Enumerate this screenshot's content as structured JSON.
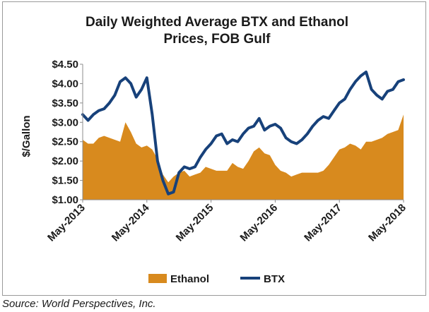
{
  "chart_data": {
    "type": "area",
    "title_lines": [
      "Daily Weighted Average BTX and Ethanol",
      "Prices, FOB Gulf"
    ],
    "ylabel": "$/Gallon",
    "xlabel": "",
    "ylim": [
      1.0,
      4.5
    ],
    "yticks": [
      1.0,
      1.5,
      2.0,
      2.5,
      3.0,
      3.5,
      4.0,
      4.5
    ],
    "ytick_labels": [
      "$1.00",
      "$1.50",
      "$2.00",
      "$2.50",
      "$3.00",
      "$3.50",
      "$4.00",
      "$4.50"
    ],
    "xlim": [
      "2013-05",
      "2018-05"
    ],
    "xtick_labels": [
      "May-2013",
      "May-2014",
      "May-2015",
      "May-2016",
      "May-2017",
      "May-2018"
    ],
    "grid": false,
    "legend_position": "bottom",
    "series": [
      {
        "name": "Ethanol",
        "kind": "area",
        "color": "#D88A1E",
        "x": [
          "2013-05",
          "2013-06",
          "2013-07",
          "2013-08",
          "2013-09",
          "2013-10",
          "2013-11",
          "2013-12",
          "2014-01",
          "2014-02",
          "2014-03",
          "2014-04",
          "2014-05",
          "2014-06",
          "2014-07",
          "2014-08",
          "2014-09",
          "2014-10",
          "2014-11",
          "2014-12",
          "2015-01",
          "2015-02",
          "2015-03",
          "2015-04",
          "2015-05",
          "2015-06",
          "2015-07",
          "2015-08",
          "2015-09",
          "2015-10",
          "2015-11",
          "2015-12",
          "2016-01",
          "2016-02",
          "2016-03",
          "2016-04",
          "2016-05",
          "2016-06",
          "2016-07",
          "2016-08",
          "2016-09",
          "2016-10",
          "2016-11",
          "2016-12",
          "2017-01",
          "2017-02",
          "2017-03",
          "2017-04",
          "2017-05",
          "2017-06",
          "2017-07",
          "2017-08",
          "2017-09",
          "2017-10",
          "2017-11",
          "2017-12",
          "2018-01",
          "2018-02",
          "2018-03",
          "2018-04",
          "2018-05"
        ],
        "values": [
          2.55,
          2.45,
          2.45,
          2.6,
          2.65,
          2.6,
          2.55,
          2.5,
          3.0,
          2.75,
          2.45,
          2.35,
          2.4,
          2.3,
          2.05,
          1.65,
          1.45,
          1.6,
          1.7,
          1.75,
          1.6,
          1.65,
          1.7,
          1.85,
          1.8,
          1.75,
          1.75,
          1.75,
          1.95,
          1.85,
          1.8,
          2.0,
          2.25,
          2.35,
          2.2,
          2.15,
          1.9,
          1.75,
          1.7,
          1.6,
          1.65,
          1.7,
          1.7,
          1.7,
          1.7,
          1.75,
          1.9,
          2.1,
          2.3,
          2.35,
          2.45,
          2.4,
          2.3,
          2.5,
          2.5,
          2.55,
          2.6,
          2.7,
          2.75,
          2.8,
          3.2
        ]
      },
      {
        "name": "BTX",
        "kind": "line",
        "color": "#17417A",
        "x": [
          "2013-05",
          "2013-06",
          "2013-07",
          "2013-08",
          "2013-09",
          "2013-10",
          "2013-11",
          "2013-12",
          "2014-01",
          "2014-02",
          "2014-03",
          "2014-04",
          "2014-05",
          "2014-06",
          "2014-07",
          "2014-08",
          "2014-09",
          "2014-10",
          "2014-11",
          "2014-12",
          "2015-01",
          "2015-02",
          "2015-03",
          "2015-04",
          "2015-05",
          "2015-06",
          "2015-07",
          "2015-08",
          "2015-09",
          "2015-10",
          "2015-11",
          "2015-12",
          "2016-01",
          "2016-02",
          "2016-03",
          "2016-04",
          "2016-05",
          "2016-06",
          "2016-07",
          "2016-08",
          "2016-09",
          "2016-10",
          "2016-11",
          "2016-12",
          "2017-01",
          "2017-02",
          "2017-03",
          "2017-04",
          "2017-05",
          "2017-06",
          "2017-07",
          "2017-08",
          "2017-09",
          "2017-10",
          "2017-11",
          "2017-12",
          "2018-01",
          "2018-02",
          "2018-03",
          "2018-04",
          "2018-05"
        ],
        "values": [
          3.2,
          3.05,
          3.2,
          3.3,
          3.35,
          3.5,
          3.7,
          4.05,
          4.15,
          4.0,
          3.65,
          3.85,
          4.15,
          3.2,
          2.0,
          1.5,
          1.15,
          1.2,
          1.7,
          1.85,
          1.8,
          1.85,
          2.1,
          2.3,
          2.45,
          2.65,
          2.7,
          2.45,
          2.55,
          2.5,
          2.7,
          2.85,
          2.9,
          3.1,
          2.8,
          2.9,
          2.95,
          2.85,
          2.6,
          2.5,
          2.45,
          2.55,
          2.7,
          2.9,
          3.05,
          3.15,
          3.1,
          3.3,
          3.5,
          3.6,
          3.85,
          4.05,
          4.2,
          4.3,
          3.85,
          3.7,
          3.6,
          3.8,
          3.85,
          4.05,
          4.1
        ]
      }
    ]
  },
  "source_note": "Source: World Perspectives, Inc."
}
